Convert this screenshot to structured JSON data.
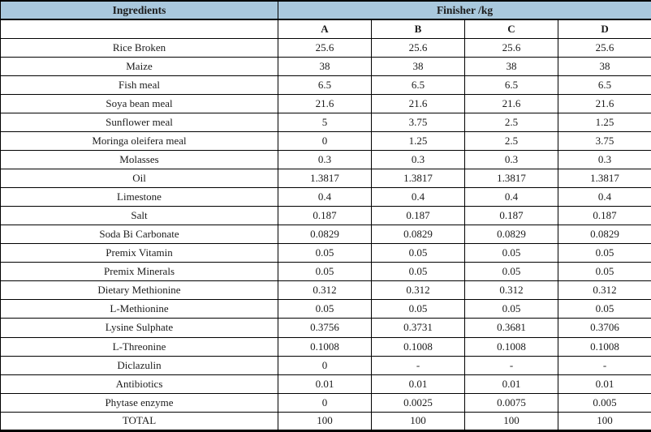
{
  "table": {
    "header": {
      "ingredients_label": "Ingredients",
      "group_label": "Finisher /kg",
      "columns": [
        "A",
        "B",
        "C",
        "D"
      ]
    },
    "rows": [
      {
        "ingredient": "Rice Broken",
        "values": [
          "25.6",
          "25.6",
          "25.6",
          "25.6"
        ]
      },
      {
        "ingredient": "Maize",
        "values": [
          "38",
          "38",
          "38",
          "38"
        ]
      },
      {
        "ingredient": "Fish meal",
        "values": [
          "6.5",
          "6.5",
          "6.5",
          "6.5"
        ]
      },
      {
        "ingredient": "Soya bean meal",
        "values": [
          "21.6",
          "21.6",
          "21.6",
          "21.6"
        ]
      },
      {
        "ingredient": "Sunflower meal",
        "values": [
          "5",
          "3.75",
          "2.5",
          "1.25"
        ]
      },
      {
        "ingredient": "Moringa oleifera meal",
        "values": [
          "0",
          "1.25",
          "2.5",
          "3.75"
        ]
      },
      {
        "ingredient": "Molasses",
        "values": [
          "0.3",
          "0.3",
          "0.3",
          "0.3"
        ]
      },
      {
        "ingredient": "Oil",
        "values": [
          "1.3817",
          "1.3817",
          "1.3817",
          "1.3817"
        ]
      },
      {
        "ingredient": "Limestone",
        "values": [
          "0.4",
          "0.4",
          "0.4",
          "0.4"
        ]
      },
      {
        "ingredient": "Salt",
        "values": [
          "0.187",
          "0.187",
          "0.187",
          "0.187"
        ]
      },
      {
        "ingredient": "Soda Bi Carbonate",
        "values": [
          "0.0829",
          "0.0829",
          "0.0829",
          "0.0829"
        ]
      },
      {
        "ingredient": "Premix Vitamin",
        "values": [
          "0.05",
          "0.05",
          "0.05",
          "0.05"
        ]
      },
      {
        "ingredient": "Premix Minerals",
        "values": [
          "0.05",
          "0.05",
          "0.05",
          "0.05"
        ]
      },
      {
        "ingredient": "Dietary Methionine",
        "values": [
          "0.312",
          "0.312",
          "0.312",
          "0.312"
        ]
      },
      {
        "ingredient": "L-Methionine",
        "values": [
          "0.05",
          "0.05",
          "0.05",
          "0.05"
        ]
      },
      {
        "ingredient": "Lysine Sulphate",
        "values": [
          "0.3756",
          "0.3731",
          "0.3681",
          "0.3706"
        ]
      },
      {
        "ingredient": "L-Threonine",
        "values": [
          "0.1008",
          "0.1008",
          "0.1008",
          "0.1008"
        ]
      },
      {
        "ingredient": "Diclazulin",
        "values": [
          "0",
          "-",
          "-",
          "-"
        ]
      },
      {
        "ingredient": "Antibiotics",
        "values": [
          "0.01",
          "0.01",
          "0.01",
          "0.01"
        ]
      },
      {
        "ingredient": "Phytase enzyme",
        "values": [
          "0",
          "0.0025",
          "0.0075",
          "0.005"
        ]
      },
      {
        "ingredient": "TOTAL",
        "values": [
          "100",
          "100",
          "100",
          "100"
        ]
      }
    ],
    "colors": {
      "header_bg": "#a9c8dd",
      "border": "#000000",
      "text": "#1b1b1b"
    }
  }
}
